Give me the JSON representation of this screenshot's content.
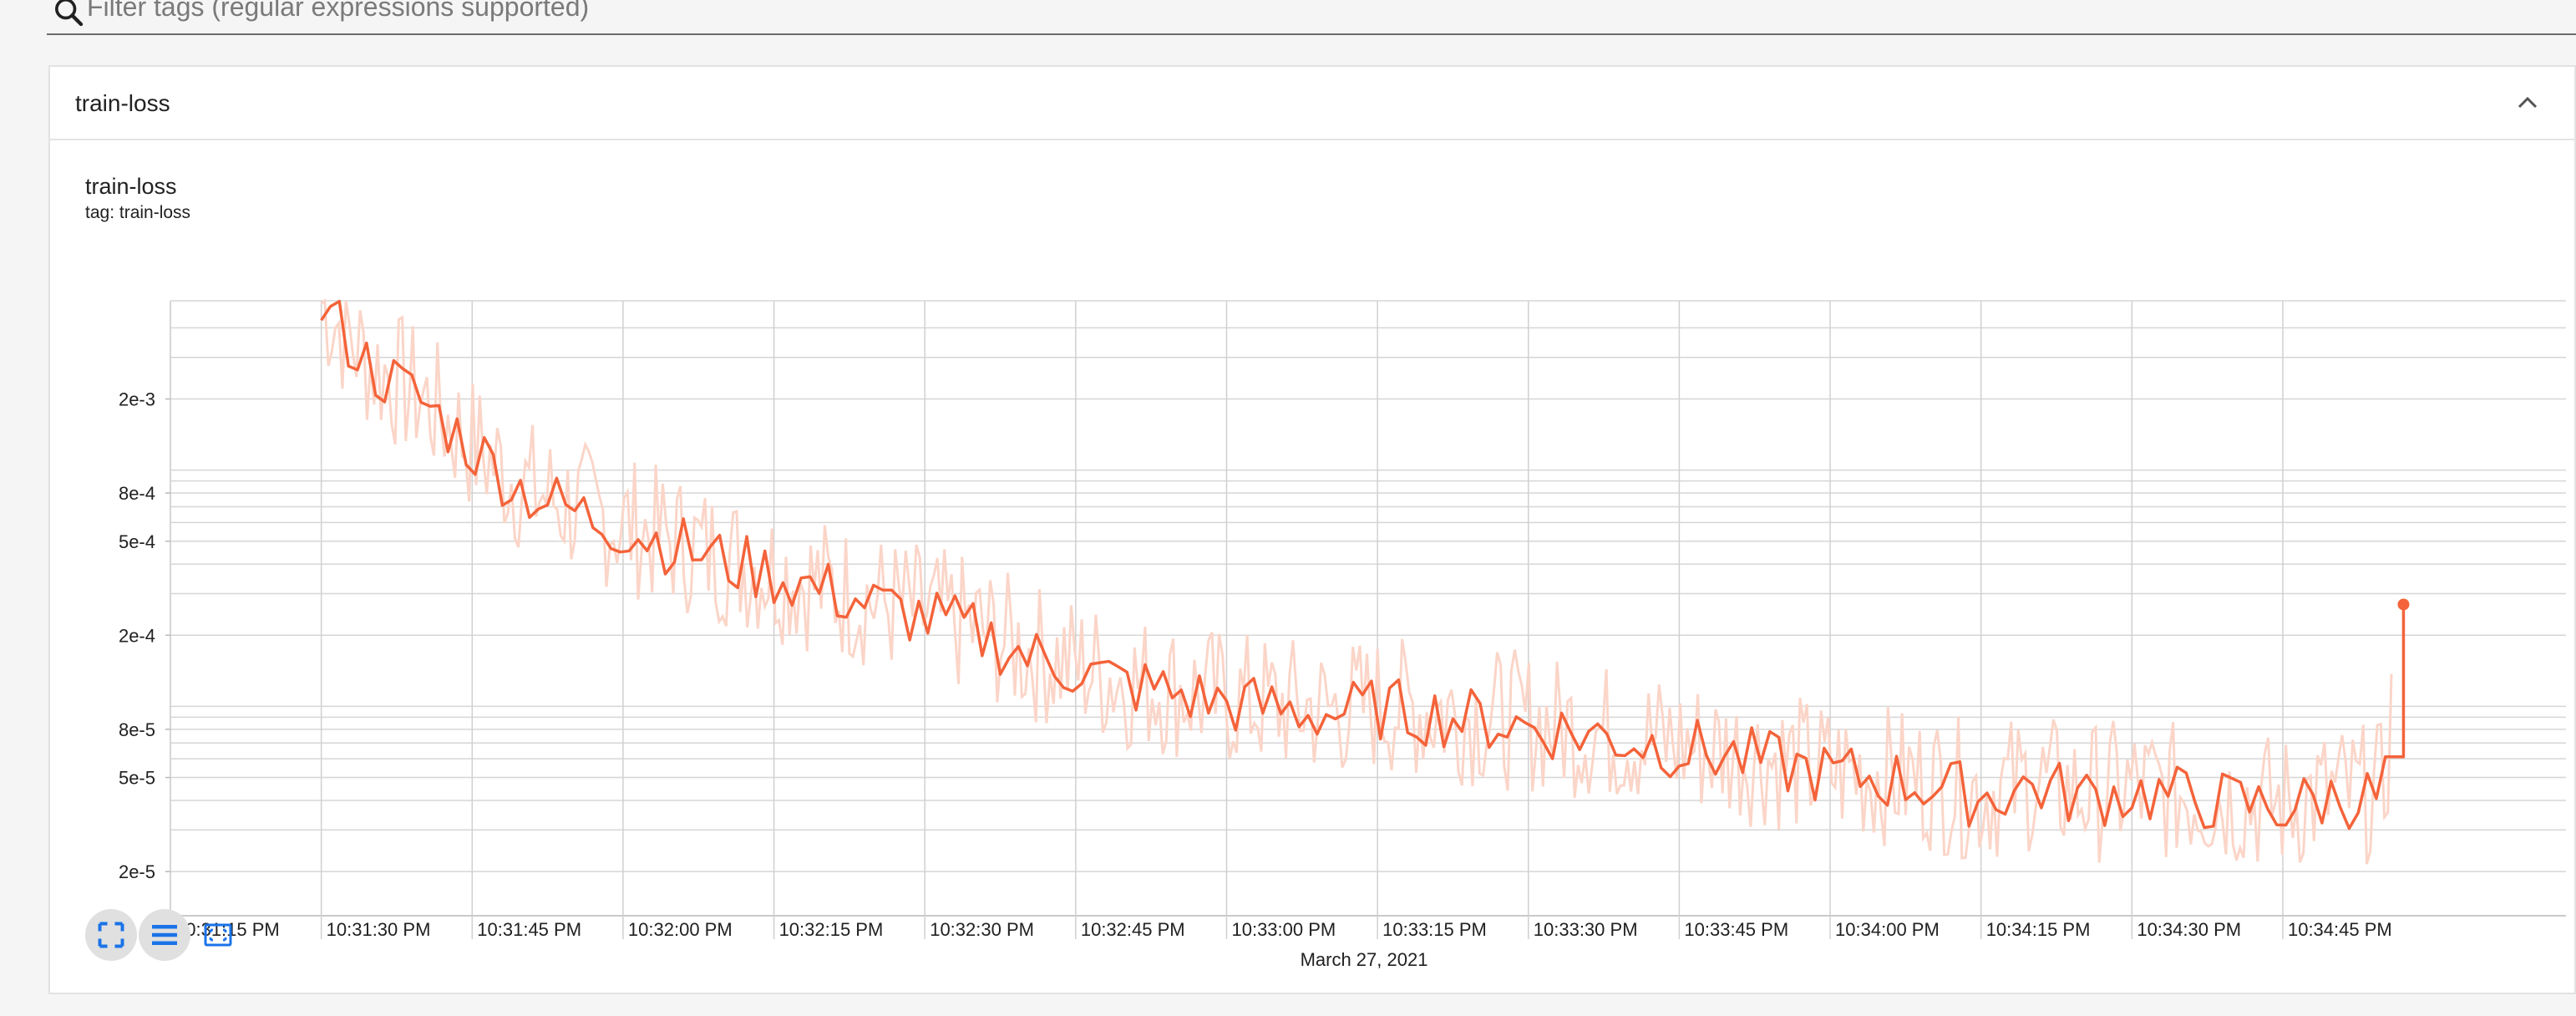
{
  "filter": {
    "placeholder": "Filter tags (regular expressions supported)"
  },
  "card": {
    "title": "train-loss"
  },
  "chart_data": {
    "type": "line",
    "title": "train-loss",
    "subtitle": "tag: train-loss",
    "xlabel": "March 27, 2021",
    "ylabel": "",
    "x_tick_labels": [
      "10:31:15 PM",
      "10:31:30 PM",
      "10:31:45 PM",
      "10:32:00 PM",
      "10:32:15 PM",
      "10:32:30 PM",
      "10:32:45 PM",
      "10:33:00 PM",
      "10:33:15 PM",
      "10:33:30 PM",
      "10:33:45 PM",
      "10:34:00 PM",
      "10:34:15 PM",
      "10:34:30 PM",
      "10:34:45 PM"
    ],
    "y_tick_labels": [
      {
        "label": "2e-3",
        "value": 0.002
      },
      {
        "label": "8e-4",
        "value": 0.0008
      },
      {
        "label": "5e-4",
        "value": 0.0005
      },
      {
        "label": "2e-4",
        "value": 0.0002
      },
      {
        "label": "8e-5",
        "value": 8e-05
      },
      {
        "label": "5e-5",
        "value": 5e-05
      },
      {
        "label": "2e-5",
        "value": 2e-05
      }
    ],
    "x_range_seconds": [
      0,
      222
    ],
    "y_scale": "log",
    "ylim": [
      1.3e-05,
      0.0048
    ],
    "grid": true,
    "series": [
      {
        "name": "",
        "color": "#f4633a",
        "smoothed_color": "#f4633a",
        "raw_color": "#fbd5c8",
        "x": [
          15,
          20,
          25,
          30,
          35,
          40,
          45,
          50,
          55,
          60,
          65,
          70,
          75,
          80,
          85,
          90,
          95,
          100,
          105,
          110,
          115,
          120,
          125,
          130,
          135,
          140,
          145,
          150,
          155,
          160,
          165,
          170,
          175,
          180,
          185,
          190,
          195,
          200,
          205,
          210,
          215,
          220,
          222
        ],
        "y": [
          0.0048,
          0.0026,
          0.0019,
          0.0012,
          0.0008,
          0.00065,
          0.00055,
          0.00047,
          0.0004,
          0.00035,
          0.0003,
          0.00026,
          0.00023,
          0.0002,
          0.00016,
          0.00014,
          0.00012,
          0.00011,
          0.0001,
          9.5e-05,
          9e-05,
          9.5e-05,
          9e-05,
          8.5e-05,
          8e-05,
          7.5e-05,
          7e-05,
          6.5e-05,
          6e-05,
          5.5e-05,
          5e-05,
          4.8e-05,
          4.5e-05,
          4e-05,
          4.5e-05,
          4e-05,
          4.2e-05,
          4e-05,
          3.8e-05,
          3.6e-05,
          4e-05,
          4e-05,
          0.00027
        ]
      }
    ],
    "final_point": {
      "x": 222,
      "y": 0.00027
    }
  },
  "toolbar": {
    "buttons": [
      {
        "name": "fullscreen",
        "icon": "fullscreen-icon"
      },
      {
        "name": "toggle-log-scale",
        "icon": "list-icon"
      },
      {
        "name": "fit-domain",
        "icon": "fit-screen-icon"
      }
    ]
  }
}
